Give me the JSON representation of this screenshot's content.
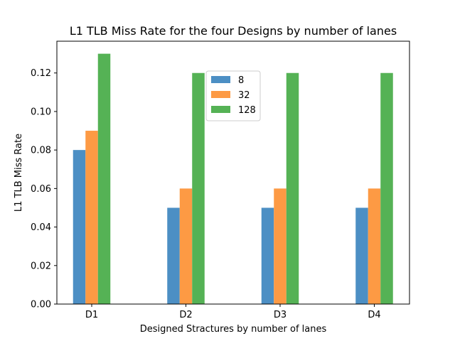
{
  "chart_data": {
    "type": "bar",
    "title": "L1 TLB Miss Rate for the four Designs by number of lanes",
    "xlabel": "Designed Stractures by number of lanes",
    "ylabel": "L1 TLB Miss Rate",
    "categories": [
      "D1",
      "D2",
      "D3",
      "D4"
    ],
    "series": [
      {
        "name": "8",
        "values": [
          0.08,
          0.05,
          0.05,
          0.05
        ],
        "color": "#4c8fc4"
      },
      {
        "name": "32",
        "values": [
          0.09,
          0.06,
          0.06,
          0.06
        ],
        "color": "#fd9a44"
      },
      {
        "name": "128",
        "values": [
          0.13,
          0.12,
          0.12,
          0.12
        ],
        "color": "#55b255"
      }
    ],
    "ylim": [
      0,
      0.1365
    ],
    "yticks": [
      "0.00",
      "0.02",
      "0.04",
      "0.06",
      "0.08",
      "0.10",
      "0.12"
    ],
    "legend": "upper-center",
    "grid": false
  }
}
